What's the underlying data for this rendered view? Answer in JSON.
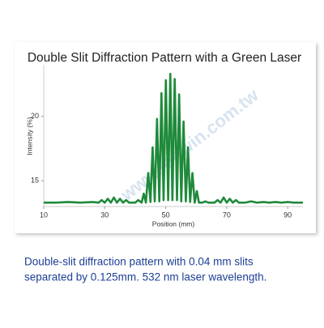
{
  "chart_data": {
    "type": "line",
    "title": "Double Slit Diffraction Pattern with a Green Laser",
    "x_label": "Position (mm)",
    "y_label": "Intensity (%)",
    "xlim": [
      10,
      95
    ],
    "ylim": [
      13,
      24
    ],
    "xticks": [
      10,
      30,
      50,
      70,
      90
    ],
    "yticks": [
      15,
      20
    ],
    "watermark": "www.lonwin.com.tw",
    "x": [
      10,
      14,
      18,
      22,
      26,
      28,
      29,
      30,
      31,
      32,
      33,
      34,
      35,
      36,
      37,
      38,
      40,
      41,
      42.1,
      42.8,
      43.5,
      44.25,
      45,
      45.7,
      46.4,
      47.15,
      47.9,
      48.6,
      49.3,
      50.05,
      50.8,
      51.5,
      52.2,
      52.95,
      53.7,
      54.4,
      55.1,
      55.85,
      56.6,
      57.3,
      58,
      58.75,
      59.5,
      60.2,
      60.9,
      62,
      63,
      64,
      66,
      67,
      68,
      69,
      70,
      71,
      72,
      73,
      74,
      76,
      78,
      80,
      82,
      84,
      86,
      88,
      90,
      92,
      95
    ],
    "series": [
      {
        "name": "Intensity",
        "color": "#1f8a3b",
        "values": [
          13.3,
          13.3,
          13.35,
          13.3,
          13.35,
          13.3,
          13.5,
          13.3,
          13.6,
          13.3,
          13.7,
          13.3,
          13.6,
          13.3,
          13.5,
          13.3,
          13.3,
          13.5,
          13.3,
          14.0,
          13.3,
          15.6,
          13.35,
          17.6,
          13.4,
          19.8,
          13.4,
          21.8,
          13.5,
          22.8,
          13.5,
          23.3,
          13.5,
          22.9,
          13.5,
          21.7,
          13.4,
          19.6,
          13.4,
          17.6,
          13.35,
          15.6,
          13.3,
          14.2,
          13.3,
          13.3,
          13.4,
          13.3,
          13.3,
          13.5,
          13.3,
          13.7,
          13.3,
          13.6,
          13.3,
          13.5,
          13.3,
          13.3,
          13.4,
          13.3,
          13.35,
          13.3,
          13.35,
          13.3,
          13.35,
          13.3,
          13.3
        ]
      }
    ]
  },
  "caption": {
    "lines": [
      "Double-slit diffraction pattern with 0.04 mm slits",
      "separated by 0.125mm. 532 nm laser wavelength."
    ]
  }
}
